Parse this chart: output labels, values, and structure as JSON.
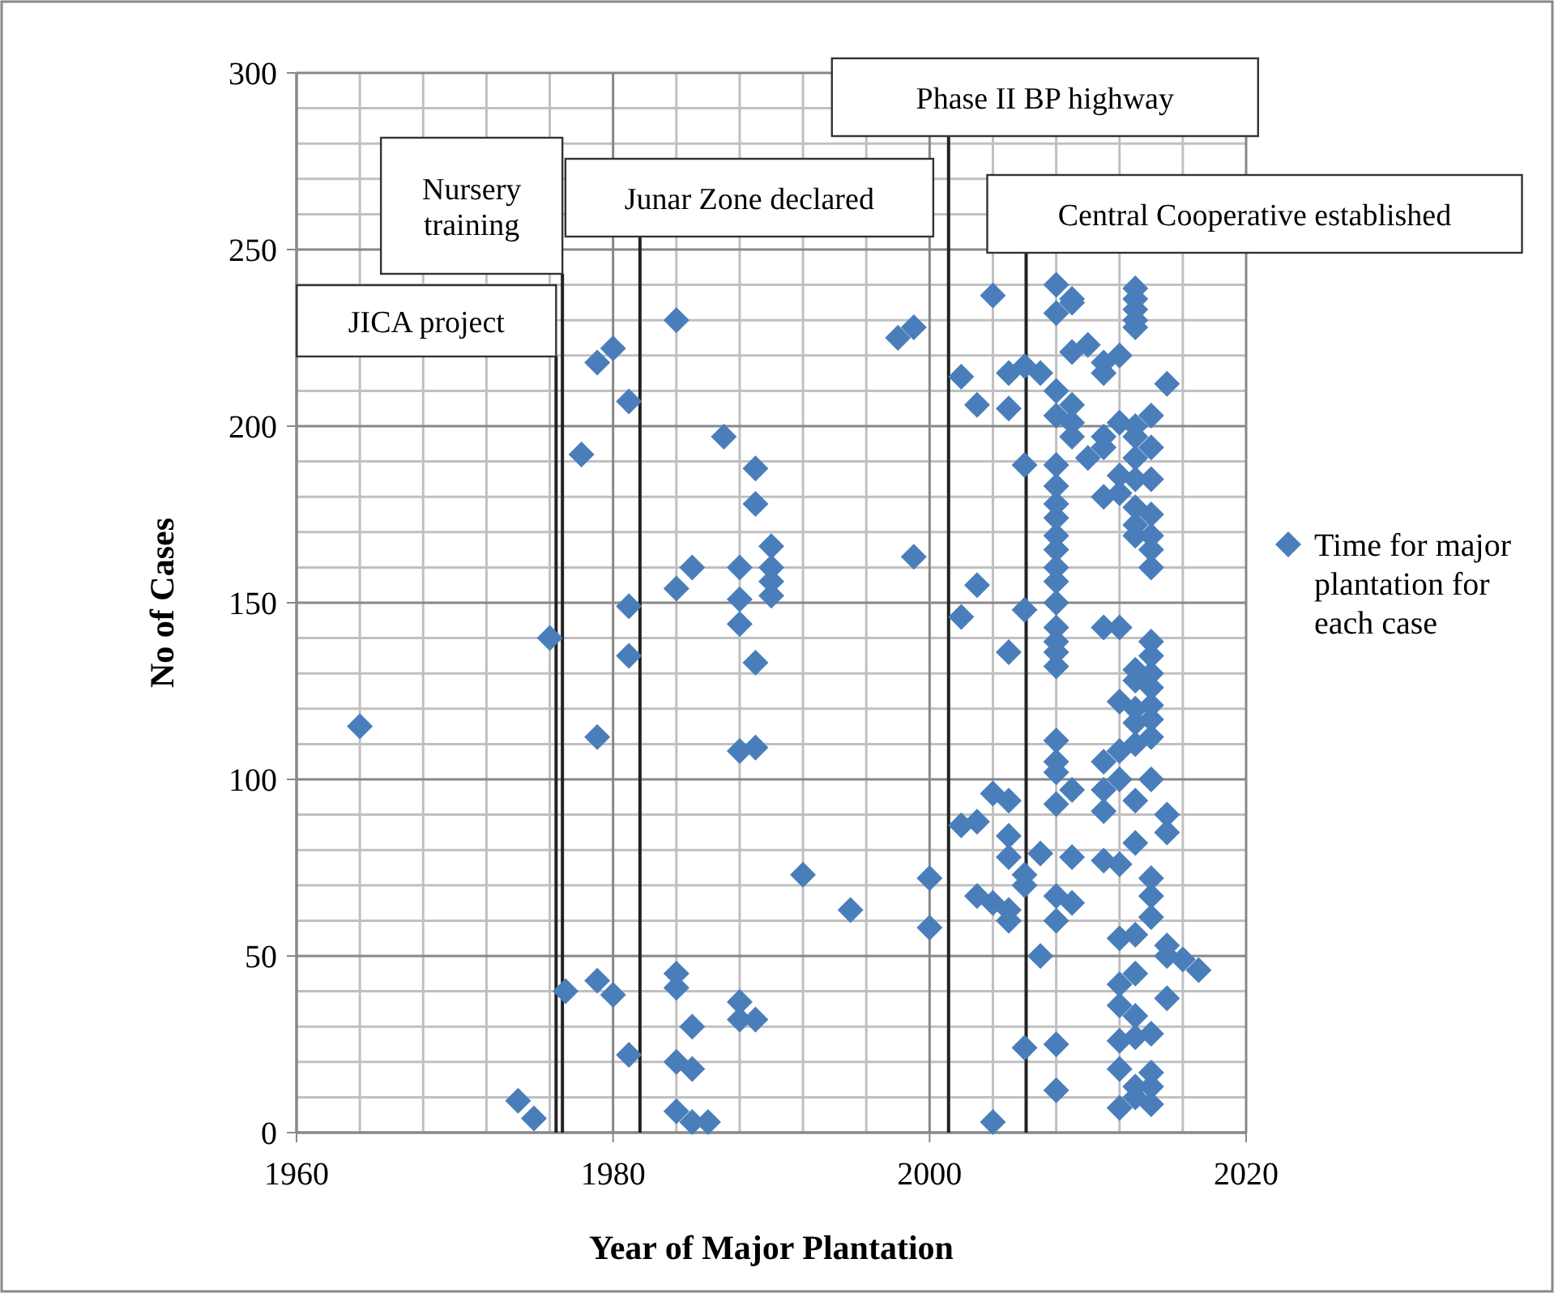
{
  "chart_data": {
    "type": "scatter",
    "xlabel": "Year of Major Plantation",
    "ylabel": "No of Cases",
    "xlim": [
      1960,
      2020
    ],
    "xticks": [
      1960,
      1980,
      2000,
      2020
    ],
    "ylim": [
      0,
      300
    ],
    "yticks": [
      0,
      50,
      100,
      150,
      200,
      250,
      300
    ],
    "grid": true,
    "legend": "right",
    "marker": "diamond",
    "ref_lines": [
      {
        "axis": "x",
        "value": 1976.4,
        "label": "JICA project"
      },
      {
        "axis": "x",
        "value": 1976.8,
        "label": "Nursery training"
      },
      {
        "axis": "x",
        "value": 1981.7,
        "label": "Junar Zone declared"
      },
      {
        "axis": "x",
        "value": 2001.2,
        "label": "Phase II BP highway"
      },
      {
        "axis": "x",
        "value": 2006.1,
        "label": "Central Cooperative established"
      }
    ],
    "series": [
      {
        "name": "Time for major plantation for each case",
        "color": "#4a7ebb",
        "x": [
          1964,
          1974,
          1975,
          1976,
          1977,
          1978,
          1979,
          1980,
          1979,
          1979,
          1980,
          1981,
          1981,
          1981,
          1981,
          1984,
          1984,
          1985,
          1984,
          1984,
          1984,
          1985,
          1985,
          1984,
          1985,
          1986,
          1987,
          1988,
          1988,
          1988,
          1988,
          1989,
          1989,
          1989,
          1989,
          1990,
          1990,
          1990,
          1990,
          1988,
          1988,
          1989,
          1992,
          1995,
          1998,
          1999,
          1999,
          2000,
          2000,
          2004,
          2008,
          2013,
          2013,
          2013,
          2013,
          2013,
          2009,
          2009,
          2008,
          2002,
          2003,
          2005,
          2005,
          2006,
          2007,
          2009,
          2010,
          2011,
          2012,
          2011,
          2015,
          2008,
          2009,
          2009,
          2008,
          2009,
          2012,
          2013,
          2014,
          2011,
          2011,
          2010,
          2013,
          2006,
          2008,
          2014,
          2013,
          2014,
          2013,
          2012,
          2008,
          2008,
          2011,
          2012,
          2013,
          2014,
          2013,
          2014,
          2013,
          2014,
          2014,
          2008,
          2008,
          2008,
          2008,
          2008,
          2008,
          2003,
          2002,
          2006,
          2005,
          2008,
          2008,
          2008,
          2008,
          2011,
          2012,
          2014,
          2014,
          2014,
          2014,
          2014,
          2014,
          2014,
          2013,
          2013,
          2012,
          2013,
          2013,
          2008,
          2008,
          2008,
          2009,
          2008,
          2011,
          2012,
          2013,
          2014,
          2013,
          2011,
          2011,
          2012,
          2015,
          2015,
          2004,
          2005,
          2003,
          2002,
          2005,
          2005,
          2006,
          2007,
          2009,
          2011,
          2012,
          2013,
          2003,
          2004,
          2005,
          2005,
          2006,
          2008,
          2009,
          2008,
          2007,
          2014,
          2014,
          2014,
          2012,
          2013,
          2015,
          2016,
          2017,
          2015,
          2012,
          2013,
          2012,
          2013,
          2014,
          2012,
          2015,
          2013,
          2006,
          2008,
          2008,
          2012,
          2014,
          2013,
          2014,
          2012,
          2014,
          2013,
          2004
        ],
        "values": [
          115,
          9,
          4,
          140,
          40,
          192,
          218,
          222,
          112,
          43,
          39,
          207,
          149,
          135,
          22,
          230,
          154,
          160,
          45,
          41,
          20,
          18,
          30,
          6,
          3,
          3,
          197,
          160,
          151,
          144,
          108,
          109,
          188,
          178,
          133,
          166,
          160,
          156,
          152,
          37,
          32,
          32,
          73,
          63,
          225,
          228,
          163,
          72,
          58,
          237,
          240,
          239,
          236,
          233,
          230,
          228,
          235,
          236,
          232,
          214,
          206,
          205,
          215,
          217,
          215,
          221,
          223,
          218,
          220,
          215,
          212,
          210,
          206,
          201,
          203,
          197,
          201,
          200,
          203,
          197,
          194,
          191,
          197,
          189,
          189,
          194,
          191,
          185,
          185,
          186,
          183,
          178,
          180,
          181,
          177,
          175,
          172,
          169,
          169,
          165,
          160,
          174,
          169,
          165,
          160,
          156,
          150,
          155,
          146,
          148,
          136,
          143,
          139,
          136,
          132,
          143,
          143,
          139,
          135,
          130,
          126,
          121,
          117,
          112,
          131,
          128,
          122,
          120,
          116,
          111,
          105,
          102,
          97,
          93,
          105,
          108,
          110,
          100,
          94,
          97,
          91,
          100,
          90,
          85,
          96,
          94,
          88,
          87,
          84,
          78,
          73,
          79,
          78,
          77,
          76,
          82,
          67,
          65,
          60,
          63,
          70,
          67,
          65,
          60,
          50,
          72,
          67,
          61,
          55,
          56,
          53,
          49,
          46,
          50,
          42,
          45,
          36,
          33,
          28,
          26,
          38,
          27,
          24,
          25,
          12,
          18,
          17,
          13,
          13,
          7,
          8,
          10,
          3
        ]
      }
    ]
  }
}
